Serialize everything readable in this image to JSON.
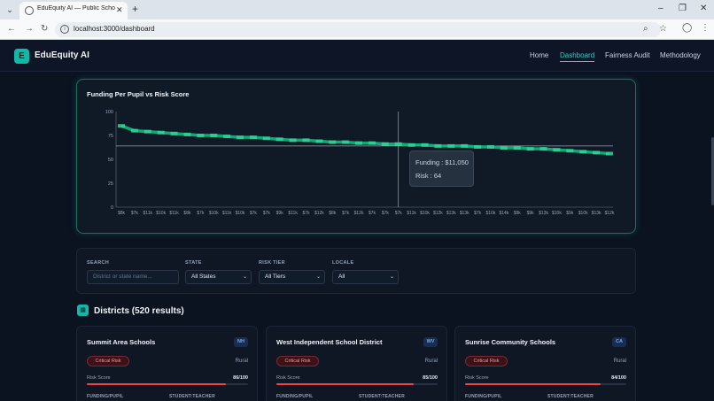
{
  "browser": {
    "tab_title": "EduEquity AI — Public School F",
    "url": "localhost:3000/dashboard"
  },
  "nav": {
    "logo_letter": "E",
    "brand": "EduEquity AI",
    "links": [
      "Home",
      "Dashboard",
      "Fairness Audit",
      "Methodology"
    ],
    "active": "Dashboard"
  },
  "chart": {
    "title": "Funding Per Pupil vs Risk Score",
    "tooltip": {
      "funding_label": "Funding : $11,050",
      "risk_label": "Risk : 64"
    }
  },
  "chart_data": {
    "type": "line",
    "title": "Funding Per Pupil vs Risk Score",
    "xlabel": "",
    "ylabel": "",
    "ylim": [
      0,
      100
    ],
    "yticks": [
      "100",
      "75",
      "50",
      "25",
      "0"
    ],
    "categories": [
      "$8k",
      "$7k",
      "$11k",
      "$10k",
      "$11k",
      "$8k",
      "$7k",
      "$10k",
      "$11k",
      "$10k",
      "$7k",
      "$7k",
      "$9k",
      "$11k",
      "$7k",
      "$12k",
      "$8k",
      "$7k",
      "$12k",
      "$7k",
      "$7k",
      "$7k",
      "$11k",
      "$10k",
      "$12k",
      "$13k",
      "$13k",
      "$7k",
      "$10k",
      "$14k",
      "$9k",
      "$9k",
      "$13k",
      "$10k",
      "$9k",
      "$10k",
      "$13k",
      "$12k"
    ],
    "series": [
      {
        "values": [
          85,
          80,
          79,
          78,
          77,
          76,
          75,
          75,
          74,
          73,
          73,
          72,
          71,
          70,
          70,
          69,
          68,
          68,
          67,
          67,
          66,
          66,
          65,
          65,
          64,
          64,
          64,
          63,
          63,
          62,
          62,
          61,
          61,
          60,
          59,
          58,
          57,
          56
        ]
      }
    ],
    "highlight": {
      "funding": 11050,
      "risk": 64
    },
    "colors": {
      "line": "#10b981"
    },
    "grid": false
  },
  "filters": {
    "search_label": "SEARCH",
    "search_placeholder": "District or state name...",
    "state_label": "STATE",
    "state_value": "All States",
    "tier_label": "RISK TIER",
    "tier_value": "All Tiers",
    "locale_label": "LOCALE",
    "locale_value": "All"
  },
  "districts": {
    "heading": "Districts (520 results)",
    "cards": [
      {
        "name": "Summit Area Schools",
        "state": "NH",
        "risk_tier": "Critical Risk",
        "locale": "Rural",
        "risk_label": "Risk Score",
        "risk_score": "86/100",
        "score": 86,
        "funding_label": "FUNDING/PUPIL",
        "ratio_label": "STUDENT:TEACHER"
      },
      {
        "name": "West Independent School District",
        "state": "WV",
        "risk_tier": "Critical Risk",
        "locale": "Rural",
        "risk_label": "Risk Score",
        "risk_score": "85/100",
        "score": 85,
        "funding_label": "FUNDING/PUPIL",
        "ratio_label": "STUDENT:TEACHER"
      },
      {
        "name": "Sunrise Community Schools",
        "state": "CA",
        "risk_tier": "Critical Risk",
        "locale": "Rural",
        "risk_label": "Risk Score",
        "risk_score": "84/100",
        "score": 84,
        "funding_label": "FUNDING/PUPIL",
        "ratio_label": "STUDENT:TEACHER"
      }
    ]
  },
  "colors": {
    "accent": "#14b8a6",
    "danger": "#ef4444",
    "background": "#0b1220"
  }
}
